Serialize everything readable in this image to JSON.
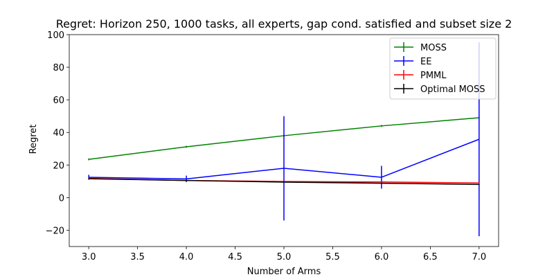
{
  "chart_data": {
    "type": "line",
    "title": "Regret: Horizon 250, 1000 tasks, all experts, gap cond. satisfied and subset size 2",
    "xlabel": "Number of Arms",
    "ylabel": "Regret",
    "xlim": [
      2.8,
      7.2
    ],
    "ylim": [
      -30,
      100
    ],
    "xticks": [
      3.0,
      3.5,
      4.0,
      4.5,
      5.0,
      5.5,
      6.0,
      6.5,
      7.0
    ],
    "xtick_labels": [
      "3.0",
      "3.5",
      "4.0",
      "4.5",
      "5.0",
      "5.5",
      "6.0",
      "6.5",
      "7.0"
    ],
    "yticks": [
      -20,
      0,
      20,
      40,
      60,
      80,
      100
    ],
    "ytick_labels": [
      "−20",
      "0",
      "20",
      "40",
      "60",
      "80",
      "100"
    ],
    "legend_position": "top-right",
    "x": [
      3,
      4,
      5,
      6,
      7
    ],
    "series": [
      {
        "name": "MOSS",
        "color": "#008000",
        "values": [
          23.5,
          31.2,
          38.0,
          44.0,
          49.0
        ],
        "errors": [
          0.6,
          0.6,
          0.6,
          0.6,
          0.6
        ]
      },
      {
        "name": "EE",
        "color": "#0000ff",
        "values": [
          12.5,
          11.5,
          18.0,
          12.5,
          35.8
        ],
        "errors": [
          1.5,
          2.0,
          32.0,
          7.0,
          59.5
        ]
      },
      {
        "name": "PMML",
        "color": "#ff0000",
        "values": [
          11.8,
          10.5,
          9.9,
          9.6,
          9.0
        ],
        "errors": [
          0.3,
          0.3,
          0.3,
          0.3,
          0.3
        ]
      },
      {
        "name": "Optimal MOSS",
        "color": "#000000",
        "values": [
          11.6,
          10.5,
          9.5,
          8.8,
          8.1
        ],
        "errors": [
          0.3,
          0.3,
          0.3,
          0.3,
          0.3
        ]
      }
    ]
  }
}
